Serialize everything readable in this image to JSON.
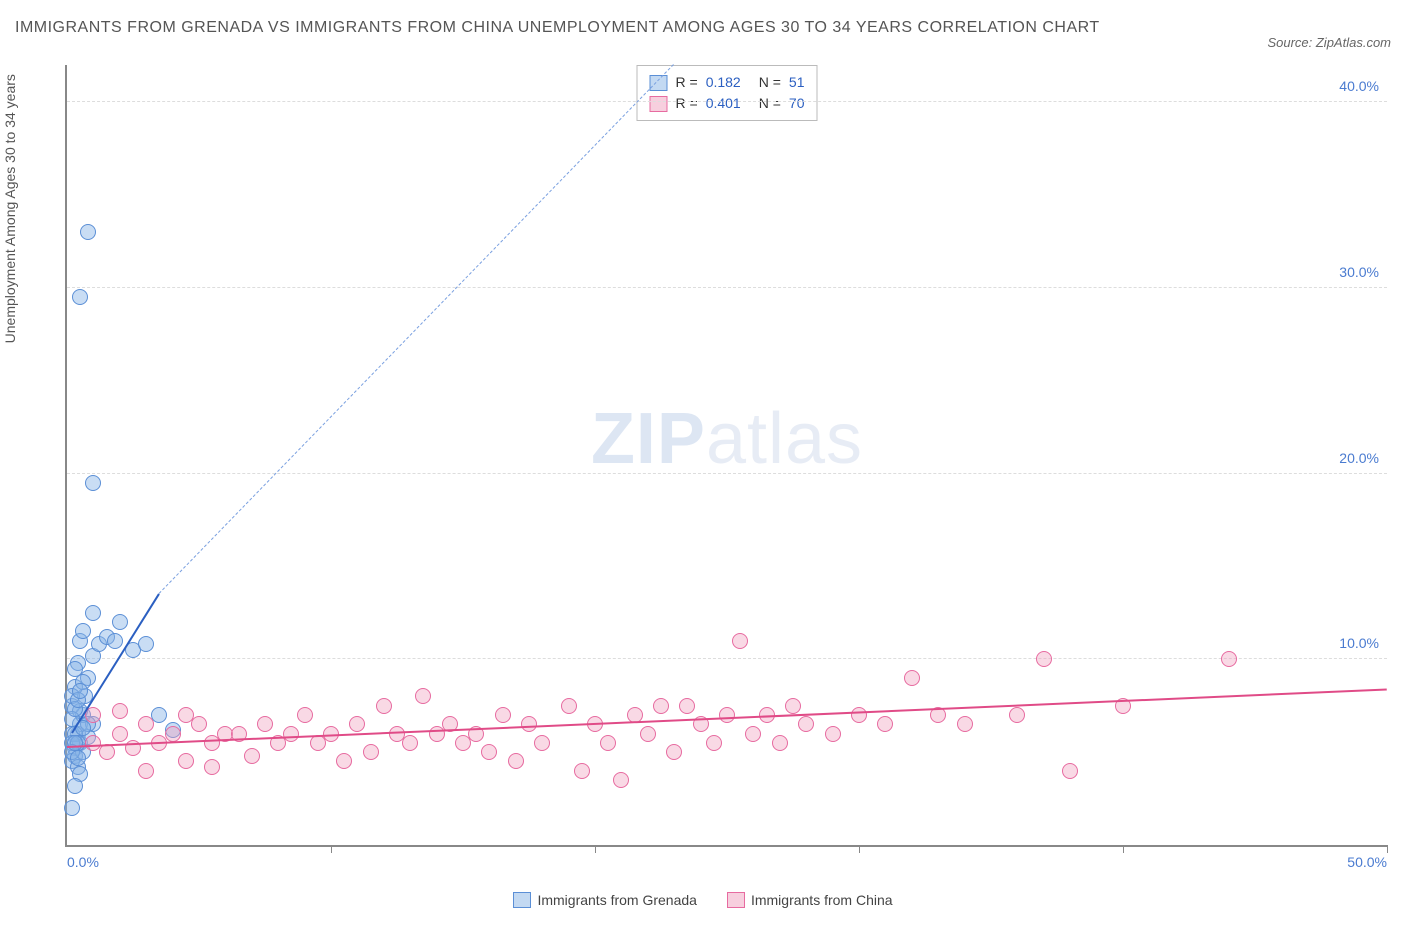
{
  "title": "IMMIGRANTS FROM GRENADA VS IMMIGRANTS FROM CHINA UNEMPLOYMENT AMONG AGES 30 TO 34 YEARS CORRELATION CHART",
  "source": "Source: ZipAtlas.com",
  "y_axis_label": "Unemployment Among Ages 30 to 34 years",
  "watermark_bold": "ZIP",
  "watermark_rest": "atlas",
  "chart": {
    "type": "scatter",
    "xlim": [
      0,
      50
    ],
    "ylim": [
      0,
      42
    ],
    "y_ticks": [
      10,
      20,
      30,
      40
    ],
    "y_tick_labels": [
      "10.0%",
      "20.0%",
      "30.0%",
      "40.0%"
    ],
    "x_ticks": [
      0,
      10,
      20,
      30,
      40,
      50
    ],
    "x_min_label": "0.0%",
    "x_max_label": "50.0%",
    "grid_color": "#dddddd",
    "axis_color": "#888888",
    "tick_label_color": "#4a7bd0",
    "series": [
      {
        "name": "Immigrants from Grenada",
        "color_fill": "rgba(135,180,230,0.45)",
        "color_stroke": "#5b8fd6",
        "class": "blue",
        "R": "0.182",
        "N": "51",
        "trend": {
          "x1": 0.2,
          "y1": 6.0,
          "x2": 3.5,
          "y2": 13.5,
          "color": "#2b5fc1"
        },
        "trend_dashed": {
          "x1": 3.5,
          "y1": 13.5,
          "x2": 23,
          "y2": 42
        },
        "points": [
          [
            0.3,
            5.2
          ],
          [
            0.4,
            6.0
          ],
          [
            0.5,
            6.5
          ],
          [
            0.6,
            7.0
          ],
          [
            0.2,
            7.5
          ],
          [
            0.7,
            8.0
          ],
          [
            0.3,
            8.5
          ],
          [
            0.8,
            9.0
          ],
          [
            0.4,
            9.8
          ],
          [
            1.0,
            10.2
          ],
          [
            1.2,
            10.8
          ],
          [
            0.5,
            11.0
          ],
          [
            1.5,
            11.2
          ],
          [
            0.6,
            11.5
          ],
          [
            1.8,
            11.0
          ],
          [
            2.0,
            12.0
          ],
          [
            1.0,
            12.5
          ],
          [
            2.5,
            10.5
          ],
          [
            3.0,
            10.8
          ],
          [
            0.3,
            4.8
          ],
          [
            0.5,
            5.5
          ],
          [
            0.2,
            4.5
          ],
          [
            0.8,
            5.8
          ],
          [
            0.4,
            4.2
          ],
          [
            1.0,
            6.5
          ],
          [
            0.6,
            5.0
          ],
          [
            0.2,
            6.0
          ],
          [
            0.3,
            6.0
          ],
          [
            0.8,
            6.5
          ],
          [
            0.5,
            7.2
          ],
          [
            0.2,
            8.0
          ],
          [
            0.6,
            8.8
          ],
          [
            0.3,
            9.5
          ],
          [
            0.5,
            3.8
          ],
          [
            0.3,
            3.2
          ],
          [
            0.2,
            5.5
          ],
          [
            0.4,
            5.5
          ],
          [
            0.2,
            2.0
          ],
          [
            0.8,
            33.0
          ],
          [
            0.5,
            29.5
          ],
          [
            1.0,
            19.5
          ],
          [
            4.0,
            6.2
          ],
          [
            3.5,
            7.0
          ],
          [
            0.2,
            6.8
          ],
          [
            0.3,
            7.3
          ],
          [
            0.4,
            7.8
          ],
          [
            0.5,
            8.3
          ],
          [
            0.6,
            6.3
          ],
          [
            0.2,
            5.0
          ],
          [
            0.3,
            5.5
          ],
          [
            0.4,
            4.7
          ]
        ]
      },
      {
        "name": "Immigrants from China",
        "color_fill": "rgba(240,160,190,0.4)",
        "color_stroke": "#e76ba0",
        "class": "pink",
        "R": "0.401",
        "N": "70",
        "trend": {
          "x1": 0,
          "y1": 5.2,
          "x2": 50,
          "y2": 8.3,
          "color": "#e04b87"
        },
        "points": [
          [
            1.0,
            5.5
          ],
          [
            1.5,
            5.0
          ],
          [
            2.0,
            6.0
          ],
          [
            2.5,
            5.2
          ],
          [
            3.0,
            6.5
          ],
          [
            3.5,
            5.5
          ],
          [
            4.0,
            6.0
          ],
          [
            4.5,
            4.5
          ],
          [
            5.0,
            6.5
          ],
          [
            5.5,
            5.5
          ],
          [
            6.0,
            6.0
          ],
          [
            6.5,
            6.0
          ],
          [
            7.0,
            4.8
          ],
          [
            7.5,
            6.5
          ],
          [
            8.0,
            5.5
          ],
          [
            8.5,
            6.0
          ],
          [
            9.0,
            7.0
          ],
          [
            9.5,
            5.5
          ],
          [
            10.0,
            6.0
          ],
          [
            10.5,
            4.5
          ],
          [
            11.0,
            6.5
          ],
          [
            11.5,
            5.0
          ],
          [
            12.0,
            7.5
          ],
          [
            12.5,
            6.0
          ],
          [
            13.0,
            5.5
          ],
          [
            13.5,
            8.0
          ],
          [
            14.0,
            6.0
          ],
          [
            14.5,
            6.5
          ],
          [
            15.0,
            5.5
          ],
          [
            15.5,
            6.0
          ],
          [
            16.0,
            5.0
          ],
          [
            16.5,
            7.0
          ],
          [
            17.0,
            4.5
          ],
          [
            17.5,
            6.5
          ],
          [
            18.0,
            5.5
          ],
          [
            19.0,
            7.5
          ],
          [
            19.5,
            4.0
          ],
          [
            20.0,
            6.5
          ],
          [
            20.5,
            5.5
          ],
          [
            21.0,
            3.5
          ],
          [
            21.5,
            7.0
          ],
          [
            22.0,
            6.0
          ],
          [
            22.5,
            7.5
          ],
          [
            23.0,
            5.0
          ],
          [
            23.5,
            7.5
          ],
          [
            24.0,
            6.5
          ],
          [
            24.5,
            5.5
          ],
          [
            25.0,
            7.0
          ],
          [
            25.5,
            11.0
          ],
          [
            26.0,
            6.0
          ],
          [
            26.5,
            7.0
          ],
          [
            27.0,
            5.5
          ],
          [
            27.5,
            7.5
          ],
          [
            28.0,
            6.5
          ],
          [
            29.0,
            6.0
          ],
          [
            30.0,
            7.0
          ],
          [
            31.0,
            6.5
          ],
          [
            32.0,
            9.0
          ],
          [
            33.0,
            7.0
          ],
          [
            34.0,
            6.5
          ],
          [
            36.0,
            7.0
          ],
          [
            37.0,
            10.0
          ],
          [
            38.0,
            4.0
          ],
          [
            40.0,
            7.5
          ],
          [
            44.0,
            10.0
          ],
          [
            1.0,
            7.0
          ],
          [
            2.0,
            7.2
          ],
          [
            3.0,
            4.0
          ],
          [
            4.5,
            7.0
          ],
          [
            5.5,
            4.2
          ]
        ]
      }
    ]
  },
  "legend_stats_labels": {
    "R": "R =",
    "N": "N ="
  },
  "bottom_legend": [
    {
      "label": "Immigrants from Grenada",
      "class": "blue"
    },
    {
      "label": "Immigrants from China",
      "class": "pink"
    }
  ]
}
